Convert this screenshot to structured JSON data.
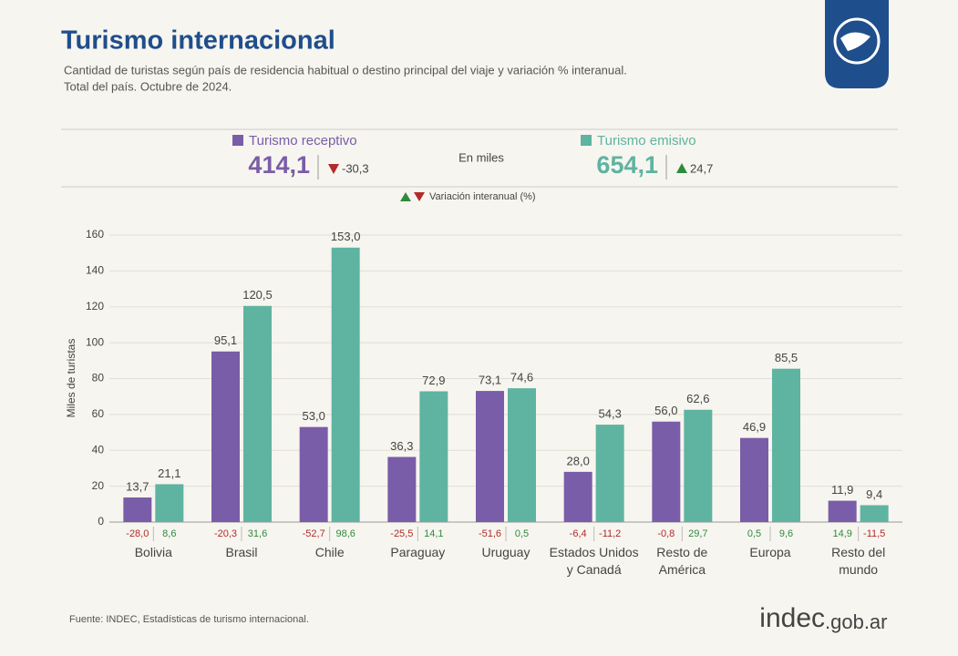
{
  "chart_data": {
    "type": "bar",
    "title": "Turismo internacional",
    "subtitle": [
      "Cantidad de turistas según país de residencia habitual o destino principal del viaje y variación % interanual.",
      "Total del país. Octubre de 2024."
    ],
    "unit_note": "En miles",
    "variation_legend": "Variación interanual (%)",
    "y_label": "Miles de turistas",
    "source": "Fuente: INDEC, Estadísticas de turismo internacional.",
    "logo_text": "indec",
    "logo_suffix": ".gob.ar",
    "categories": [
      [
        "Bolivia"
      ],
      [
        "Brasil"
      ],
      [
        "Chile"
      ],
      [
        "Paraguay"
      ],
      [
        "Uruguay"
      ],
      [
        "Estados Unidos",
        "y Canadá"
      ],
      [
        "Resto de",
        "América"
      ],
      [
        "Europa"
      ],
      [
        "Resto del",
        "mundo"
      ]
    ],
    "series": [
      {
        "name": "Turismo receptivo",
        "color": "#7a5da8",
        "values": [
          13.7,
          95.1,
          53.0,
          36.3,
          73.1,
          28.0,
          56.0,
          46.9,
          11.9
        ],
        "value_labels": [
          "13,7",
          "95,1",
          "53,0",
          "36,3",
          "73,1",
          "28,0",
          "56,0",
          "46,9",
          "11,9"
        ],
        "variation": [
          -28.0,
          -20.3,
          -52.7,
          -25.5,
          -51.6,
          -6.4,
          -0.8,
          0.5,
          14.9
        ],
        "variation_labels": [
          "-28,0",
          "-20,3",
          "-52,7",
          "-25,5",
          "-51,6",
          "-6,4",
          "-0,8",
          "0,5",
          "14,9"
        ],
        "total": 414.1,
        "total_label": "414,1",
        "total_variation": -30.3,
        "total_variation_label": "-30,3"
      },
      {
        "name": "Turismo emisivo",
        "color": "#5fb3a1",
        "values": [
          21.1,
          120.5,
          153.0,
          72.9,
          74.6,
          54.3,
          62.6,
          85.5,
          9.4
        ],
        "value_labels": [
          "21,1",
          "120,5",
          "153,0",
          "72,9",
          "74,6",
          "54,3",
          "62,6",
          "85,5",
          "9,4"
        ],
        "variation": [
          8.6,
          31.6,
          98.6,
          14.1,
          0.5,
          -11.2,
          29.7,
          9.6,
          -11.5
        ],
        "variation_labels": [
          "8,6",
          "31,6",
          "98,6",
          "14,1",
          "0,5",
          "-11,2",
          "29,7",
          "9,6",
          "-11,5"
        ],
        "total": 654.1,
        "total_label": "654,1",
        "total_variation": 24.7,
        "total_variation_label": "24,7"
      }
    ],
    "positive_color": "#2e8b3e",
    "negative_color": "#b22a2a",
    "ylim": [
      0,
      160
    ],
    "yticks": [
      0,
      20,
      40,
      60,
      80,
      100,
      120,
      140,
      160
    ],
    "grid": true
  }
}
